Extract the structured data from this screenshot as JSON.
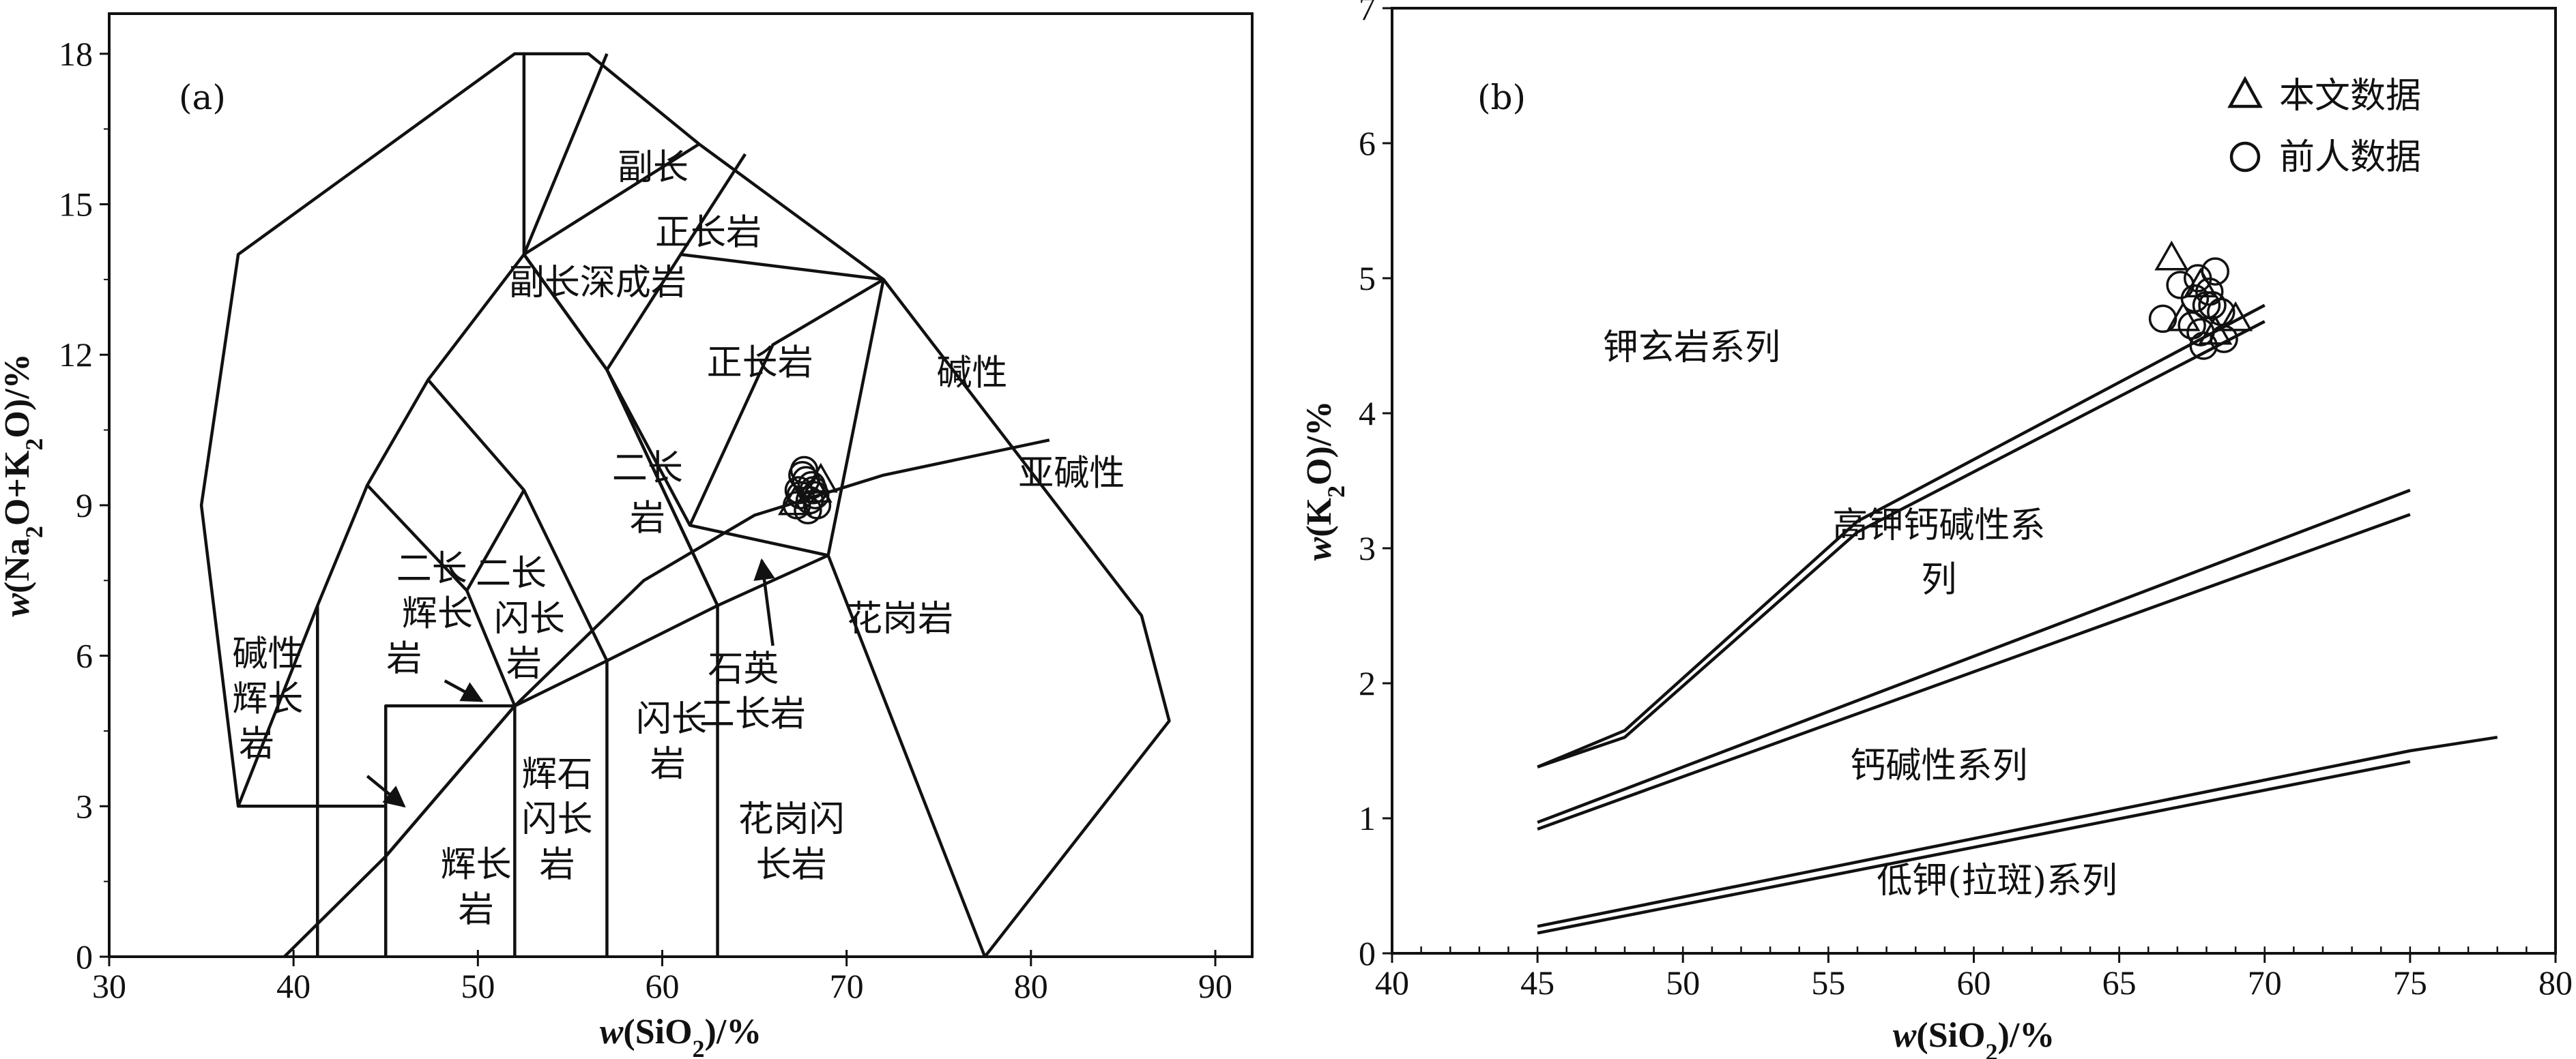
{
  "chart_data": [
    {
      "panel": "(a)",
      "type": "line",
      "xlabel": "w(SiO2)/%",
      "ylabel": "w(Na2O+K2O)/%",
      "xlim": [
        30,
        92
      ],
      "ylim": [
        0,
        18.8
      ],
      "x_ticks": [
        "30",
        "40",
        "50",
        "60",
        "70",
        "80",
        "90"
      ],
      "y_ticks": [
        "0",
        "3",
        "6",
        "9",
        "12",
        "15",
        "18"
      ],
      "field_boundaries": [
        {
          "name": "outer",
          "points": [
            [
              41.3,
              0
            ],
            [
              41.3,
              7
            ],
            [
              44,
              9.4
            ],
            [
              47.3,
              11.5
            ],
            [
              52.5,
              14
            ],
            [
              52.5,
              18
            ],
            [
              56,
              18
            ],
            [
              62,
              16.2
            ],
            [
              72,
              13.5
            ],
            [
              86,
              6.8
            ],
            [
              87.5,
              4.7
            ],
            [
              77.5,
              0
            ]
          ]
        },
        {
          "name": "foidolite",
          "points": [
            [
              41.3,
              7
            ],
            [
              37,
              3
            ],
            [
              37,
              3
            ],
            [
              35,
              9
            ],
            [
              37,
              14
            ],
            [
              52,
              18
            ],
            [
              52.5,
              18
            ]
          ]
        },
        {
          "name": "foidolite-base",
          "points": [
            [
              37,
              3
            ],
            [
              45,
              3
            ],
            [
              45,
              0
            ]
          ]
        },
        {
          "name": "b1",
          "points": [
            [
              45,
              0
            ],
            [
              45,
              5
            ],
            [
              52,
              5
            ],
            [
              52,
              0
            ]
          ]
        },
        {
          "name": "b2",
          "points": [
            [
              44,
              9.4
            ],
            [
              49.4,
              7.3
            ],
            [
              52,
              5
            ]
          ]
        },
        {
          "name": "b3",
          "points": [
            [
              47.3,
              11.5
            ],
            [
              52.5,
              9.3
            ],
            [
              57,
              5.9
            ],
            [
              57,
              0
            ]
          ]
        },
        {
          "name": "b4",
          "points": [
            [
              52.5,
              14
            ],
            [
              57,
              11.7
            ],
            [
              63,
              7
            ],
            [
              63,
              0
            ]
          ]
        },
        {
          "name": "b5",
          "points": [
            [
              57,
              11.7
            ],
            [
              61.5,
              8.6
            ],
            [
              69,
              8
            ],
            [
              77.5,
              0
            ]
          ]
        },
        {
          "name": "b6",
          "points": [
            [
              52.5,
              14
            ],
            [
              62,
              16.2
            ]
          ]
        },
        {
          "name": "b7",
          "points": [
            [
              49.4,
              7.3
            ],
            [
              52.5,
              9.3
            ]
          ]
        },
        {
          "name": "b8",
          "points": [
            [
              57,
              11.7
            ],
            [
              52.5,
              14
            ],
            [
              57,
              18
            ]
          ]
        },
        {
          "name": "b9",
          "points": [
            [
              63,
              7
            ],
            [
              57,
              11.7
            ],
            [
              61,
              14
            ],
            [
              64.5,
              16
            ]
          ]
        },
        {
          "name": "b10",
          "points": [
            [
              61,
              14
            ],
            [
              72,
              13.5
            ],
            [
              69,
              8
            ]
          ]
        },
        {
          "name": "b11",
          "points": [
            [
              61.5,
              8.6
            ],
            [
              66,
              12.2
            ],
            [
              72,
              13.5
            ]
          ]
        },
        {
          "name": "alkaline-divide",
          "points": [
            [
              39.5,
              0
            ],
            [
              45,
              2
            ],
            [
              52,
              5
            ],
            [
              59,
              7.5
            ],
            [
              65,
              8.8
            ],
            [
              72,
              9.6
            ],
            [
              81,
              10.3
            ]
          ]
        },
        {
          "name": "q-monzo-line",
          "points": [
            [
              45,
              2
            ],
            [
              52,
              5
            ],
            [
              57,
              5.9
            ],
            [
              63,
              7
            ],
            [
              69,
              8
            ]
          ]
        }
      ],
      "field_labels": [
        "副长深成岩",
        "副长",
        "正长岩",
        "正长岩",
        "碱性",
        "二长",
        "岩",
        "亚碱性",
        "二长",
        "辉长",
        "岩",
        "二长",
        "闪长",
        "岩",
        "碱性",
        "辉长",
        "岩",
        "石英",
        "二长岩",
        "花岗岩",
        "辉石",
        "闪长",
        "岩",
        "闪长",
        "岩",
        "辉长",
        "岩",
        "花岗闪",
        "长岩"
      ],
      "series": [
        {
          "name": "本文数据",
          "marker": "triangle",
          "x": [
            67.2,
            68.3,
            68.6
          ],
          "y": [
            9.05,
            9.3,
            9.5
          ]
        },
        {
          "name": "前人数据",
          "marker": "circle",
          "x": [
            67.3,
            67.5,
            67.8,
            68.0,
            68.2,
            67.6,
            68.4,
            67.9,
            68.1,
            67.7,
            68.3,
            67.4
          ],
          "y": [
            9.0,
            9.2,
            9.5,
            9.1,
            9.3,
            9.6,
            9.0,
            8.9,
            9.4,
            9.7,
            9.2,
            9.3
          ]
        }
      ],
      "arrows": [
        {
          "target": "二长辉长岩",
          "from": [
            48.2,
            5.5
          ],
          "to": [
            50.2,
            5.1
          ]
        },
        {
          "target": "碱性辉长岩",
          "from": [
            44,
            3.6
          ],
          "to": [
            46,
            3.0
          ]
        },
        {
          "target": "石英二长岩",
          "from": [
            66,
            6.2
          ],
          "to": [
            65.4,
            7.9
          ]
        }
      ]
    },
    {
      "panel": "(b)",
      "type": "line",
      "xlabel": "w(SiO2)/%",
      "ylabel": "w(K2O)/%",
      "xlim": [
        40,
        80
      ],
      "ylim": [
        0,
        7
      ],
      "x_ticks": [
        "40",
        "45",
        "50",
        "55",
        "60",
        "65",
        "70",
        "75",
        "80"
      ],
      "y_ticks": [
        "0",
        "1",
        "2",
        "3",
        "4",
        "5",
        "6",
        "7"
      ],
      "series_labels": [
        "钾玄岩系列",
        "高钾钙碱性系",
        "列",
        "钙碱性系列",
        "低钾(拉斑)系列"
      ],
      "divider_lines": [
        {
          "name": "shoshonite-upper",
          "points": [
            [
              45,
              1.38
            ],
            [
              48,
              1.65
            ],
            [
              56,
              3.2
            ],
            [
              70,
              4.8
            ]
          ]
        },
        {
          "name": "shoshonite-lower",
          "points": [
            [
              45,
              1.38
            ],
            [
              48,
              1.6
            ],
            [
              56,
              3.12
            ],
            [
              70,
              4.68
            ]
          ]
        },
        {
          "name": "highK-upper",
          "points": [
            [
              45,
              0.97
            ],
            [
              75,
              3.43
            ]
          ]
        },
        {
          "name": "highK-lower",
          "points": [
            [
              45,
              0.92
            ],
            [
              75,
              3.25
            ]
          ]
        },
        {
          "name": "calc-upper",
          "points": [
            [
              45,
              0.2
            ],
            [
              75,
              1.5
            ],
            [
              78,
              1.6
            ]
          ]
        },
        {
          "name": "calc-lower",
          "points": [
            [
              45,
              0.15
            ],
            [
              75,
              1.42
            ]
          ]
        }
      ],
      "series": [
        {
          "name": "本文数据",
          "marker": "triangle",
          "x": [
            66.8,
            67.2,
            67.8,
            68.3,
            69.0
          ],
          "y": [
            5.15,
            4.7,
            4.95,
            4.6,
            4.7
          ]
        },
        {
          "name": "前人数据",
          "marker": "circle",
          "x": [
            66.5,
            67.1,
            67.6,
            67.8,
            68.0,
            68.3,
            68.5,
            67.9,
            68.1,
            67.5,
            68.6,
            67.7,
            68.2
          ],
          "y": [
            4.7,
            4.95,
            4.85,
            4.6,
            4.8,
            5.05,
            4.75,
            4.5,
            4.9,
            4.65,
            4.55,
            5.0,
            4.8
          ]
        }
      ],
      "legend": {
        "position": "top-right",
        "entries": [
          {
            "marker": "triangle",
            "label": "本文数据"
          },
          {
            "marker": "circle",
            "label": "前人数据"
          }
        ]
      }
    }
  ]
}
